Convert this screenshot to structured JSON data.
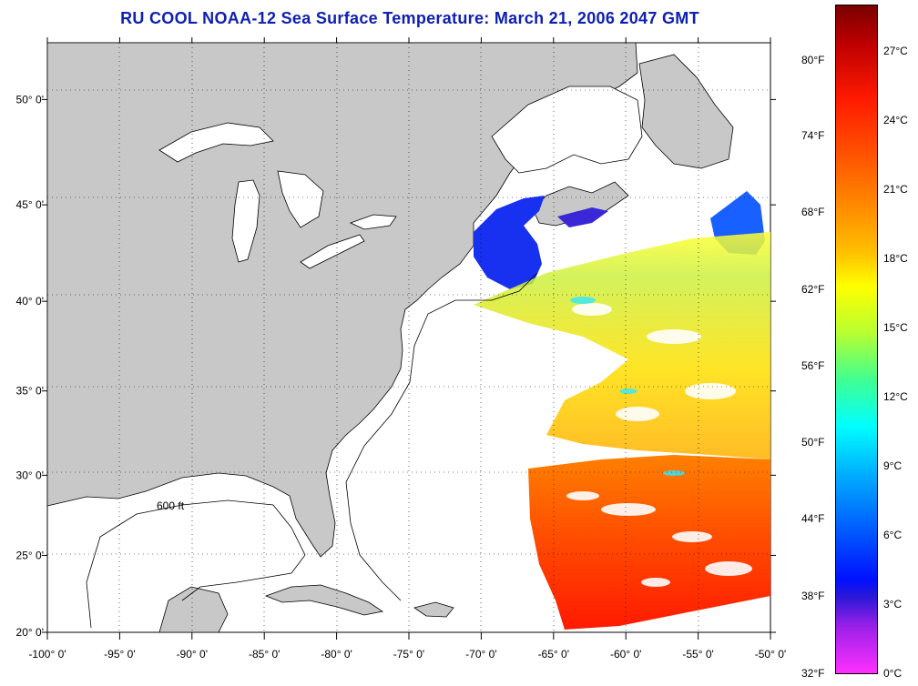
{
  "title": "RU COOL  NOAA-12  Sea Surface Temperature:  March 21, 2006 2047 GMT",
  "map": {
    "lat_labels": [
      "50° 0'",
      "45° 0'",
      "40° 0'",
      "35° 0'",
      "30° 0'",
      "25° 0'",
      "20° 0'"
    ],
    "lat_values": [
      50,
      45,
      40,
      35,
      30,
      25,
      20
    ],
    "lon_labels": [
      "-100° 0'",
      "-95° 0'",
      "-90° 0'",
      "-85° 0'",
      "-80° 0'",
      "-75° 0'",
      "-70° 0'",
      "-65° 0'",
      "-60° 0'",
      "-55° 0'",
      "-50° 0'"
    ],
    "lon_values": [
      -100,
      -95,
      -90,
      -85,
      -80,
      -75,
      -70,
      -65,
      -60,
      -55,
      -50
    ],
    "lon_range": [
      -100,
      -50
    ],
    "lat_range": [
      20,
      52.5
    ],
    "isobath_label": "600 ft",
    "land_color": "#c8c8c8",
    "ocean_color": "#ffffff",
    "grid": "dotted"
  },
  "colorbar": {
    "fahrenheit": [
      "80°F",
      "74°F",
      "68°F",
      "62°F",
      "56°F",
      "50°F",
      "44°F",
      "38°F",
      "32°F"
    ],
    "celsius": [
      "27°C",
      "24°C",
      "21°C",
      "18°C",
      "15°C",
      "12°C",
      "9°C",
      "6°C",
      "3°C",
      "0°C"
    ]
  }
}
